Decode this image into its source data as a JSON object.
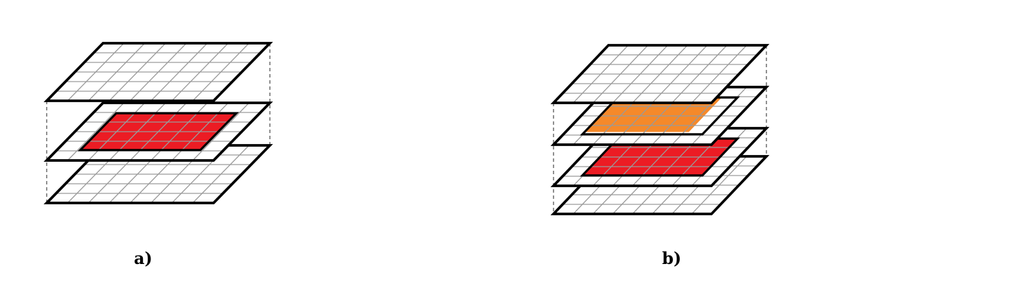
{
  "colors": {
    "outline": "#000000",
    "grid": "#9a9a9a",
    "connector": "#555555",
    "red": "#ec1c24",
    "orange": "#f5892a",
    "paper": "#ffffff"
  },
  "panels": [
    {
      "caption": "a)",
      "layers": [
        {
          "role": "top",
          "fill": "none"
        },
        {
          "role": "middle",
          "fill": "red"
        },
        {
          "role": "bottom",
          "fill": "none"
        }
      ]
    },
    {
      "caption": "b)",
      "layers": [
        {
          "role": "top",
          "fill": "none"
        },
        {
          "role": "upper-middle",
          "fill": "orange"
        },
        {
          "role": "lower-middle",
          "fill": "red"
        },
        {
          "role": "bottom",
          "fill": "none"
        }
      ]
    }
  ]
}
